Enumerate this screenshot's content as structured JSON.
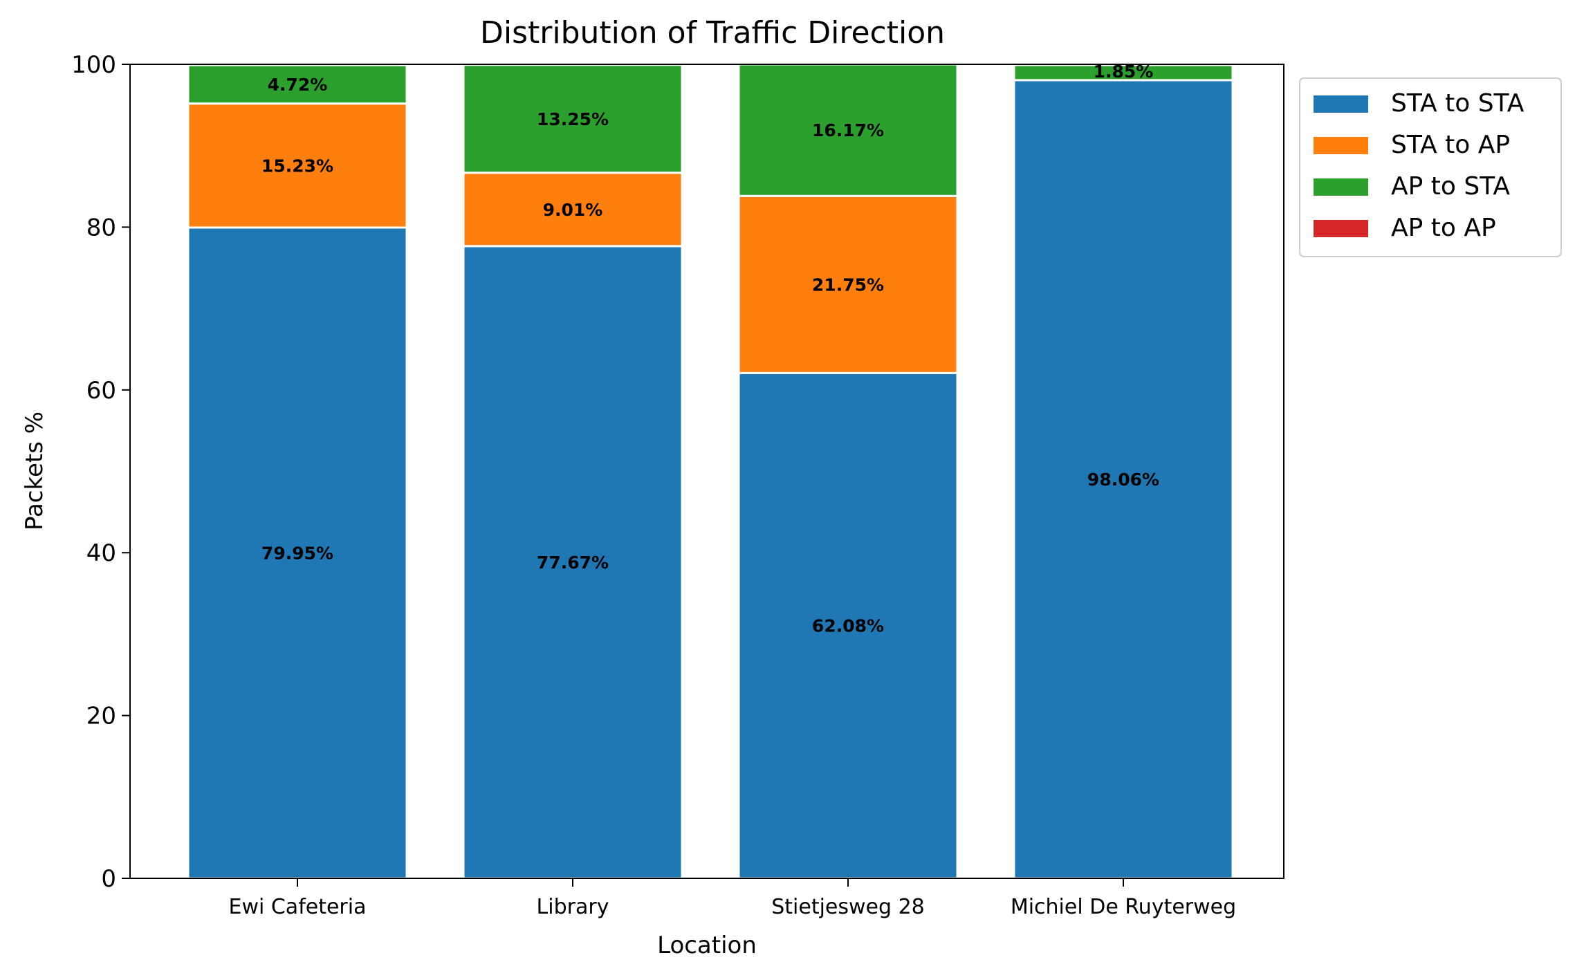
{
  "chart_data": {
    "type": "bar",
    "stacked": true,
    "title": "Distribution of Traffic Direction",
    "xlabel": "Location",
    "ylabel": "Packets %",
    "ylim": [
      0,
      100
    ],
    "yticks": [
      0,
      20,
      40,
      60,
      80,
      100
    ],
    "categories": [
      "Ewi Cafeteria",
      "Library",
      "Stietjesweg 28",
      "Michiel De Ruyterweg"
    ],
    "series": [
      {
        "name": "STA to STA",
        "color": "#1f77b4",
        "values": [
          79.95,
          77.67,
          62.08,
          98.06
        ],
        "labels": [
          "79.95%",
          "77.67%",
          "62.08%",
          "98.06%"
        ]
      },
      {
        "name": "STA to AP",
        "color": "#ff7f0e",
        "values": [
          15.23,
          9.01,
          21.75,
          0.0
        ],
        "labels": [
          "15.23%",
          "9.01%",
          "21.75%",
          ""
        ]
      },
      {
        "name": "AP to STA",
        "color": "#2ca02c",
        "values": [
          4.72,
          13.25,
          16.17,
          1.85
        ],
        "labels": [
          "4.72%",
          "13.25%",
          "16.17%",
          "1.85%"
        ]
      },
      {
        "name": "AP to AP",
        "color": "#d62728",
        "values": [
          0.0,
          0.0,
          0.0,
          0.0
        ],
        "labels": [
          "",
          "",
          "",
          ""
        ]
      }
    ],
    "grid": false,
    "legend_position": "outside-top-right"
  }
}
